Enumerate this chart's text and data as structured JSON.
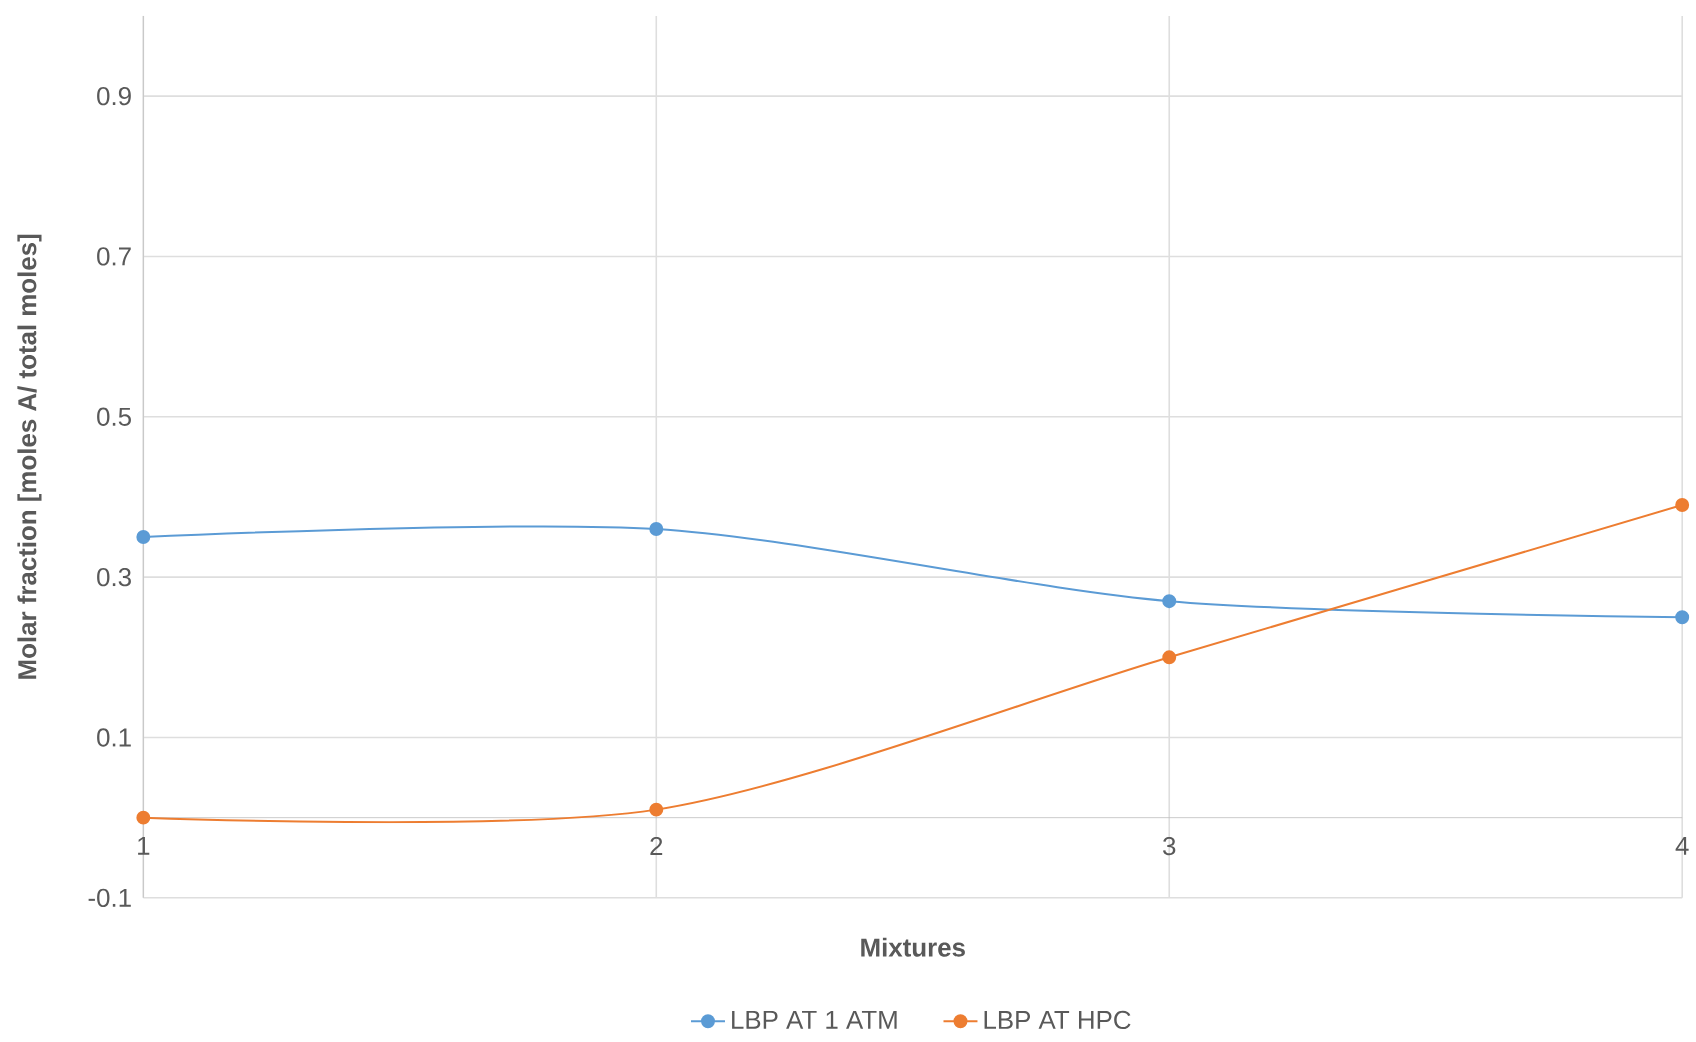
{
  "chart_data": {
    "type": "line",
    "xlabel": "Mixtures",
    "ylabel": "Molar fraction [moles A/ total moles]",
    "x": [
      1,
      2,
      3,
      4
    ],
    "series": [
      {
        "name": "LBP AT 1 ATM",
        "color": "#5b9bd5",
        "values": [
          0.35,
          0.36,
          0.27,
          0.25
        ]
      },
      {
        "name": "LBP AT HPC",
        "color": "#ed7d31",
        "values": [
          0.0,
          0.01,
          0.2,
          0.39
        ]
      }
    ],
    "xlim": [
      1,
      4
    ],
    "xticks": [
      1,
      2,
      3,
      4
    ],
    "ylim": [
      -0.1,
      1.0
    ],
    "yticks": [
      -0.1,
      0.1,
      0.3,
      0.5,
      0.7,
      0.9
    ],
    "grid": true,
    "legend": "bottom",
    "marker": "circle",
    "line_style": "solid"
  }
}
